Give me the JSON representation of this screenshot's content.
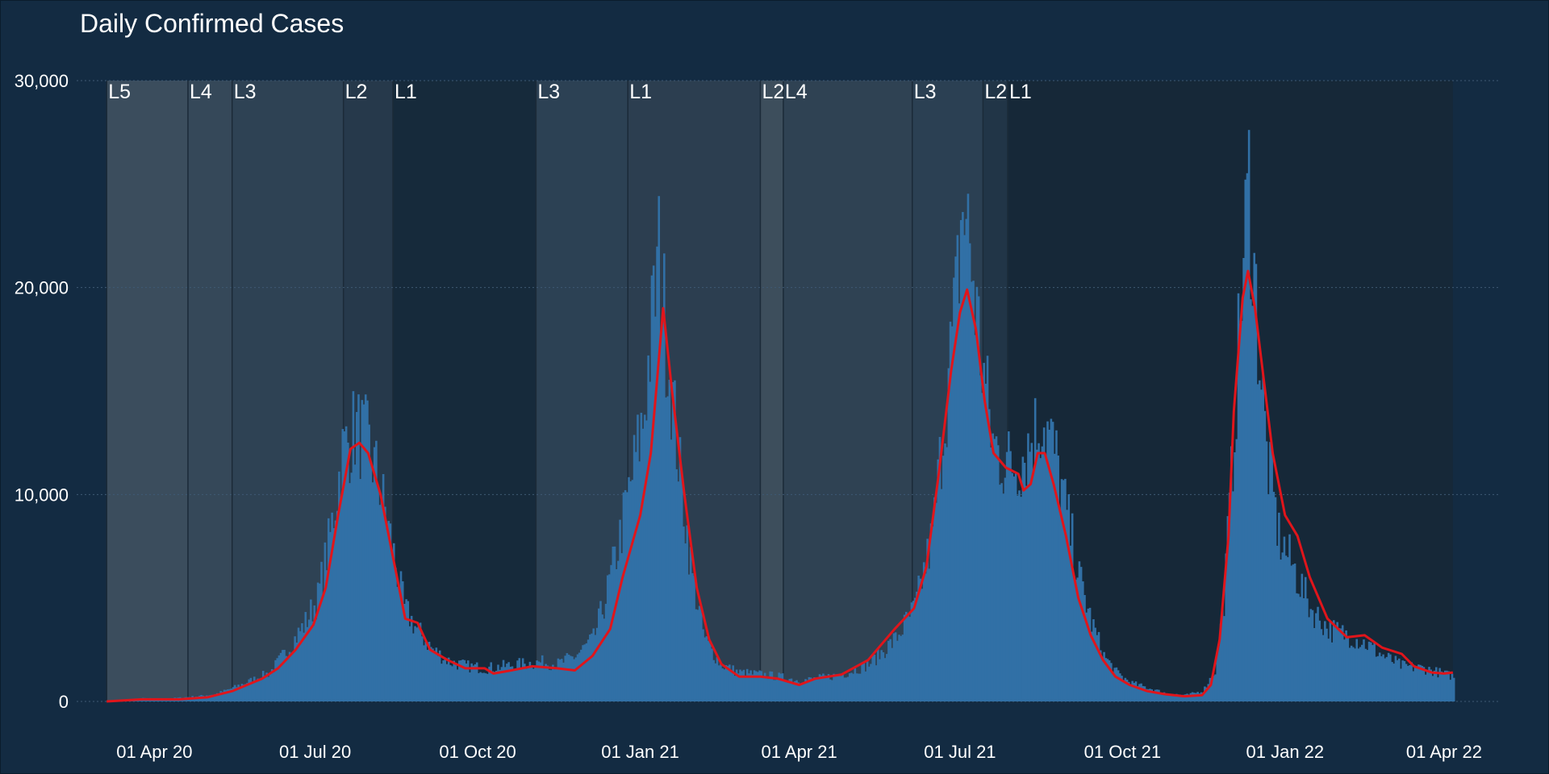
{
  "chart_data": {
    "type": "bar",
    "title": "Daily Confirmed Cases",
    "xlabel": "",
    "ylabel": "",
    "x_start": "2020-03-05",
    "x_end": "2022-04-06",
    "xlim": [
      "2020-02-17",
      "2022-05-03"
    ],
    "ylim": [
      0,
      30000
    ],
    "grid": true,
    "legend": "none",
    "y_ticks": [
      {
        "value": 0,
        "label": "0"
      },
      {
        "value": 10000,
        "label": "10,000"
      },
      {
        "value": 20000,
        "label": "20,000"
      },
      {
        "value": 30000,
        "label": "30,000"
      }
    ],
    "x_ticks": [
      {
        "date": "2020-04-01",
        "label": "01 Apr 20"
      },
      {
        "date": "2020-07-01",
        "label": "01 Jul 20"
      },
      {
        "date": "2020-10-01",
        "label": "01 Oct 20"
      },
      {
        "date": "2021-01-01",
        "label": "01 Jan 21"
      },
      {
        "date": "2021-04-01",
        "label": "01 Apr 21"
      },
      {
        "date": "2021-07-01",
        "label": "01 Jul 21"
      },
      {
        "date": "2021-10-01",
        "label": "01 Oct 21"
      },
      {
        "date": "2022-01-01",
        "label": "01 Jan 22"
      },
      {
        "date": "2022-04-01",
        "label": "01 Apr 22"
      }
    ],
    "series": [
      {
        "type": "bar",
        "color": "#3170a6",
        "points": [
          [
            "2020-03-05",
            0
          ],
          [
            "2020-03-15",
            50
          ],
          [
            "2020-03-25",
            150
          ],
          [
            "2020-04-05",
            120
          ],
          [
            "2020-04-15",
            180
          ],
          [
            "2020-04-25",
            250
          ],
          [
            "2020-05-05",
            350
          ],
          [
            "2020-05-15",
            650
          ],
          [
            "2020-05-25",
            1000
          ],
          [
            "2020-06-05",
            1400
          ],
          [
            "2020-06-15",
            2500
          ],
          [
            "2020-06-25",
            3800
          ],
          [
            "2020-07-02",
            5000
          ],
          [
            "2020-07-09",
            8000
          ],
          [
            "2020-07-16",
            12000
          ],
          [
            "2020-07-23",
            13200
          ],
          [
            "2020-07-30",
            12500
          ],
          [
            "2020-08-06",
            10500
          ],
          [
            "2020-08-13",
            7500
          ],
          [
            "2020-08-20",
            4500
          ],
          [
            "2020-08-27",
            3500
          ],
          [
            "2020-09-05",
            2500
          ],
          [
            "2020-09-15",
            1900
          ],
          [
            "2020-09-25",
            1700
          ],
          [
            "2020-10-05",
            1600
          ],
          [
            "2020-10-15",
            1700
          ],
          [
            "2020-10-25",
            1800
          ],
          [
            "2020-11-05",
            1900
          ],
          [
            "2020-11-15",
            1800
          ],
          [
            "2020-11-25",
            2200
          ],
          [
            "2020-12-05",
            3000
          ],
          [
            "2020-12-12",
            5000
          ],
          [
            "2020-12-19",
            7500
          ],
          [
            "2020-12-26",
            10500
          ],
          [
            "2021-01-02",
            13500
          ],
          [
            "2021-01-07",
            18000
          ],
          [
            "2021-01-11",
            21500
          ],
          [
            "2021-01-16",
            17000
          ],
          [
            "2021-01-23",
            11000
          ],
          [
            "2021-01-30",
            6000
          ],
          [
            "2021-02-06",
            3000
          ],
          [
            "2021-02-15",
            1800
          ],
          [
            "2021-02-25",
            1400
          ],
          [
            "2021-03-10",
            1300
          ],
          [
            "2021-03-20",
            1200
          ],
          [
            "2021-04-01",
            1000
          ],
          [
            "2021-04-10",
            1100
          ],
          [
            "2021-04-25",
            1300
          ],
          [
            "2021-05-10",
            1800
          ],
          [
            "2021-05-25",
            3000
          ],
          [
            "2021-06-05",
            4500
          ],
          [
            "2021-06-15",
            8000
          ],
          [
            "2021-06-22",
            14000
          ],
          [
            "2021-06-28",
            19000
          ],
          [
            "2021-07-02",
            24000
          ],
          [
            "2021-07-06",
            22000
          ],
          [
            "2021-07-12",
            17000
          ],
          [
            "2021-07-19",
            12500
          ],
          [
            "2021-07-26",
            11500
          ],
          [
            "2021-08-02",
            11500
          ],
          [
            "2021-08-09",
            12500
          ],
          [
            "2021-08-16",
            13800
          ],
          [
            "2021-08-23",
            12000
          ],
          [
            "2021-08-30",
            9000
          ],
          [
            "2021-09-06",
            6000
          ],
          [
            "2021-09-13",
            3800
          ],
          [
            "2021-09-20",
            2200
          ],
          [
            "2021-09-27",
            1400
          ],
          [
            "2021-10-05",
            900
          ],
          [
            "2021-10-15",
            650
          ],
          [
            "2021-10-25",
            400
          ],
          [
            "2021-11-05",
            300
          ],
          [
            "2021-11-15",
            500
          ],
          [
            "2021-11-22",
            1500
          ],
          [
            "2021-11-27",
            5000
          ],
          [
            "2021-12-02",
            12000
          ],
          [
            "2021-12-07",
            20000
          ],
          [
            "2021-12-11",
            25000
          ],
          [
            "2021-12-16",
            18000
          ],
          [
            "2021-12-21",
            12000
          ],
          [
            "2021-12-28",
            8000
          ],
          [
            "2022-01-05",
            6500
          ],
          [
            "2022-01-15",
            4500
          ],
          [
            "2022-01-25",
            3500
          ],
          [
            "2022-02-05",
            3200
          ],
          [
            "2022-02-15",
            2800
          ],
          [
            "2022-02-25",
            2200
          ],
          [
            "2022-03-08",
            1700
          ],
          [
            "2022-03-20",
            1600
          ],
          [
            "2022-04-06",
            1200
          ]
        ]
      },
      {
        "type": "line",
        "color": "#e0151b",
        "points": [
          [
            "2020-03-05",
            0
          ],
          [
            "2020-03-25",
            100
          ],
          [
            "2020-04-15",
            100
          ],
          [
            "2020-05-01",
            200
          ],
          [
            "2020-05-15",
            500
          ],
          [
            "2020-06-01",
            1100
          ],
          [
            "2020-06-10",
            1600
          ],
          [
            "2020-06-20",
            2500
          ],
          [
            "2020-06-30",
            3700
          ],
          [
            "2020-07-07",
            5500
          ],
          [
            "2020-07-14",
            9000
          ],
          [
            "2020-07-21",
            12200
          ],
          [
            "2020-07-26",
            12500
          ],
          [
            "2020-07-31",
            12000
          ],
          [
            "2020-08-07",
            10000
          ],
          [
            "2020-08-14",
            7000
          ],
          [
            "2020-08-21",
            4000
          ],
          [
            "2020-08-28",
            3800
          ],
          [
            "2020-09-04",
            2500
          ],
          [
            "2020-09-14",
            2000
          ],
          [
            "2020-09-24",
            1600
          ],
          [
            "2020-10-05",
            1600
          ],
          [
            "2020-10-10",
            1350
          ],
          [
            "2020-10-20",
            1500
          ],
          [
            "2020-11-01",
            1700
          ],
          [
            "2020-11-15",
            1600
          ],
          [
            "2020-11-25",
            1500
          ],
          [
            "2020-12-05",
            2200
          ],
          [
            "2020-12-15",
            3500
          ],
          [
            "2020-12-22",
            6000
          ],
          [
            "2021-01-01",
            9000
          ],
          [
            "2021-01-07",
            12000
          ],
          [
            "2021-01-10",
            15000
          ],
          [
            "2021-01-14",
            19000
          ],
          [
            "2021-01-19",
            15000
          ],
          [
            "2021-01-26",
            10000
          ],
          [
            "2021-02-02",
            5500
          ],
          [
            "2021-02-09",
            3000
          ],
          [
            "2021-02-16",
            1800
          ],
          [
            "2021-02-26",
            1200
          ],
          [
            "2021-03-10",
            1200
          ],
          [
            "2021-03-20",
            1100
          ],
          [
            "2021-04-01",
            800
          ],
          [
            "2021-04-10",
            1100
          ],
          [
            "2021-04-25",
            1300
          ],
          [
            "2021-05-10",
            2000
          ],
          [
            "2021-05-25",
            3500
          ],
          [
            "2021-06-05",
            4500
          ],
          [
            "2021-06-12",
            6500
          ],
          [
            "2021-06-19",
            11000
          ],
          [
            "2021-06-26",
            16000
          ],
          [
            "2021-07-01",
            18800
          ],
          [
            "2021-07-05",
            19900
          ],
          [
            "2021-07-10",
            18000
          ],
          [
            "2021-07-15",
            14500
          ],
          [
            "2021-07-20",
            12000
          ],
          [
            "2021-07-27",
            11300
          ],
          [
            "2021-08-03",
            11000
          ],
          [
            "2021-08-06",
            10200
          ],
          [
            "2021-08-10",
            10500
          ],
          [
            "2021-08-14",
            12000
          ],
          [
            "2021-08-18",
            12000
          ],
          [
            "2021-08-23",
            10500
          ],
          [
            "2021-08-30",
            8000
          ],
          [
            "2021-09-06",
            5000
          ],
          [
            "2021-09-13",
            3200
          ],
          [
            "2021-09-20",
            2000
          ],
          [
            "2021-09-27",
            1200
          ],
          [
            "2021-10-05",
            800
          ],
          [
            "2021-10-15",
            500
          ],
          [
            "2021-10-25",
            350
          ],
          [
            "2021-11-05",
            250
          ],
          [
            "2021-11-15",
            300
          ],
          [
            "2021-11-20",
            800
          ],
          [
            "2021-11-25",
            3000
          ],
          [
            "2021-11-30",
            8000
          ],
          [
            "2021-12-03",
            14000
          ],
          [
            "2021-12-08",
            19500
          ],
          [
            "2021-12-11",
            20800
          ],
          [
            "2021-12-15",
            19000
          ],
          [
            "2021-12-20",
            15500
          ],
          [
            "2021-12-25",
            12000
          ],
          [
            "2022-01-01",
            9000
          ],
          [
            "2022-01-08",
            8000
          ],
          [
            "2022-01-15",
            6000
          ],
          [
            "2022-01-25",
            4000
          ],
          [
            "2022-02-05",
            3100
          ],
          [
            "2022-02-15",
            3200
          ],
          [
            "2022-02-25",
            2600
          ],
          [
            "2022-03-08",
            2300
          ],
          [
            "2022-03-15",
            1700
          ],
          [
            "2022-03-25",
            1400
          ],
          [
            "2022-04-01",
            1350
          ],
          [
            "2022-04-06",
            1400
          ]
        ]
      }
    ],
    "alert_levels": [
      {
        "label": "L5",
        "start": "2020-03-05",
        "end": "2020-04-20",
        "color": "#3b4d5d"
      },
      {
        "label": "L4",
        "start": "2020-04-20",
        "end": "2020-05-15",
        "color": "#354859"
      },
      {
        "label": "L3",
        "start": "2020-05-15",
        "end": "2020-07-17",
        "color": "#2e4254"
      },
      {
        "label": "L2",
        "start": "2020-07-17",
        "end": "2020-08-14",
        "color": "#26394b"
      },
      {
        "label": "L1",
        "start": "2020-08-14",
        "end": "2020-11-03",
        "color": "#162a3b"
      },
      {
        "label": "L3",
        "start": "2020-11-03",
        "end": "2020-12-25",
        "color": "#2c4154"
      },
      {
        "label": "L1",
        "start": "2020-12-25",
        "end": "2021-03-10",
        "color": "#2c3e50"
      },
      {
        "label": "L2",
        "start": "2021-03-10",
        "end": "2021-03-23",
        "color": "#3d4e5c"
      },
      {
        "label": "L4",
        "start": "2021-03-23",
        "end": "2021-06-04",
        "color": "#2f4253"
      },
      {
        "label": "L3",
        "start": "2021-06-04",
        "end": "2021-07-14",
        "color": "#2b4053"
      },
      {
        "label": "L2",
        "start": "2021-07-14",
        "end": "2021-07-28",
        "color": "#213547"
      },
      {
        "label": "L1",
        "start": "2021-07-28",
        "end": "2022-04-06",
        "color": "#162838"
      }
    ]
  }
}
